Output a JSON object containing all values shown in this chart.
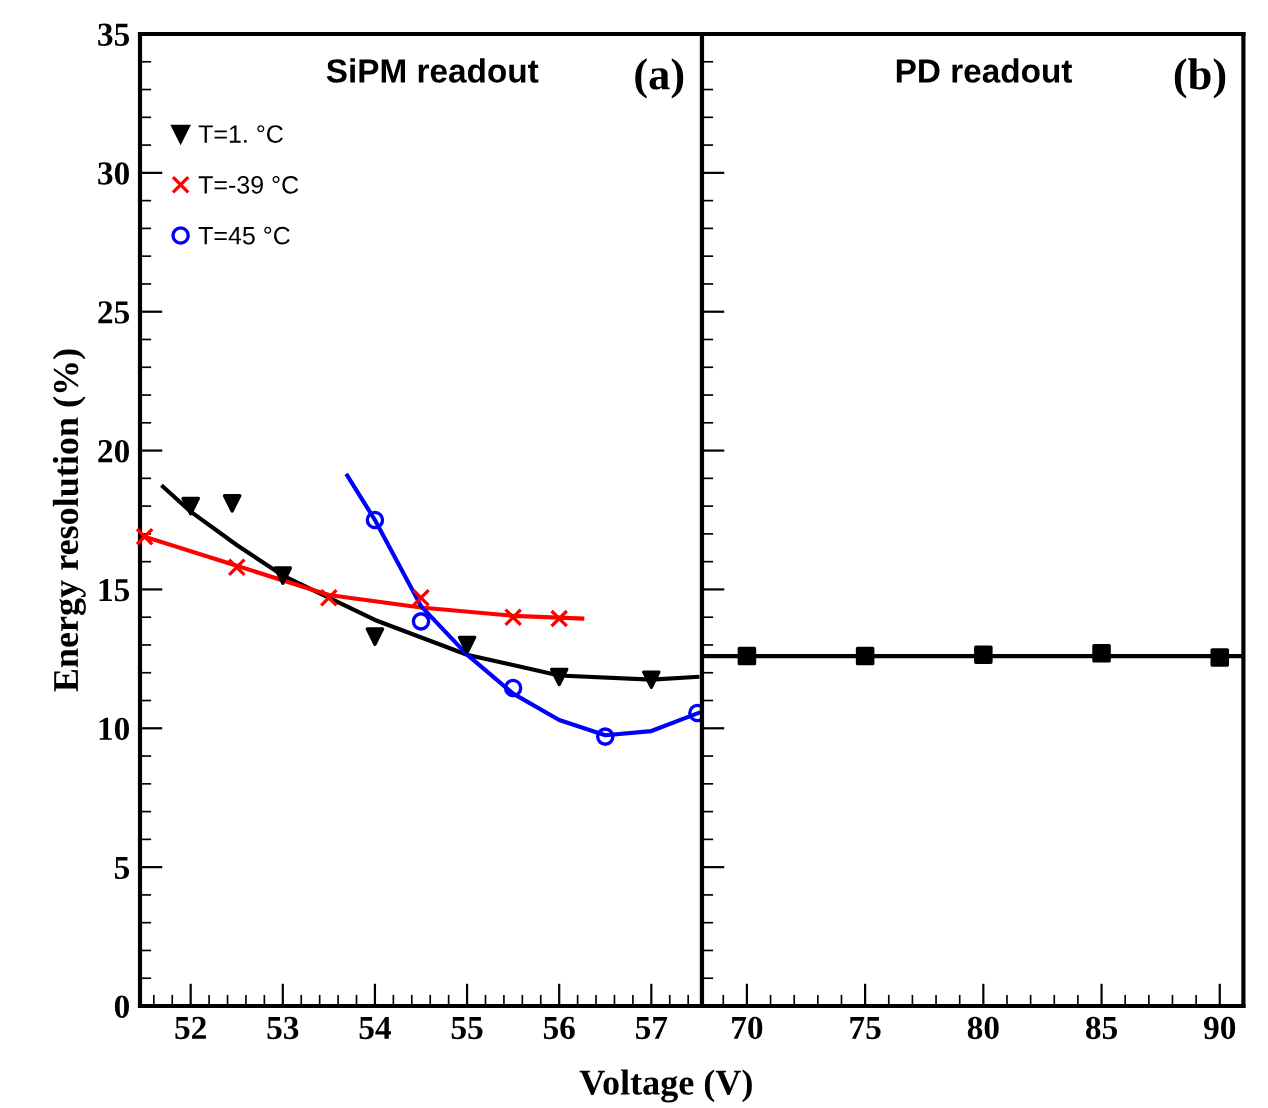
{
  "chart_data": [
    {
      "type": "scatter",
      "title": "SiPM readout",
      "annotations": [
        "(a)"
      ],
      "xlabel": "Voltage (V)",
      "ylabel": "Energy resolution (%)",
      "xlim": [
        51.45,
        57.55
      ],
      "xticks": [
        52,
        53,
        54,
        55,
        56,
        57
      ],
      "ylim": [
        0,
        35
      ],
      "yticks": [
        0,
        5,
        10,
        15,
        20,
        25,
        30,
        35
      ],
      "legend": "top left",
      "grid": false,
      "series": [
        {
          "name": "T=1. °C",
          "marker": "triangle",
          "color": "#000000",
          "x": [
            52.0,
            52.45,
            53.0,
            54.0,
            55.0,
            56.0,
            57.0
          ],
          "values": [
            18.0,
            18.1,
            15.5,
            13.3,
            13.0,
            11.85,
            11.75
          ]
        },
        {
          "name": "T=-39 °C",
          "marker": "cross",
          "color": "#ff0000",
          "x": [
            51.5,
            52.5,
            53.5,
            54.5,
            55.5,
            56.0
          ],
          "values": [
            16.9,
            15.8,
            14.7,
            14.7,
            14.0,
            13.95
          ]
        },
        {
          "name": "T=45 °C",
          "marker": "circle",
          "color": "#0000ff",
          "x": [
            54.0,
            54.5,
            55.5,
            56.5,
            57.5
          ],
          "values": [
            17.5,
            13.85,
            11.45,
            9.7,
            10.55
          ]
        },
        {
          "type": "line",
          "color": "#000000",
          "x": [
            51.7,
            52.0,
            52.5,
            53.0,
            54.0,
            55.0,
            56.0,
            57.0,
            57.5
          ],
          "values": [
            18.7,
            17.8,
            16.6,
            15.5,
            13.9,
            12.65,
            11.9,
            11.75,
            11.85
          ]
        },
        {
          "type": "line",
          "color": "#ff0000",
          "x": [
            51.5,
            52.5,
            53.5,
            54.5,
            55.5,
            56.25
          ],
          "values": [
            16.9,
            15.85,
            14.8,
            14.35,
            14.05,
            13.95
          ]
        },
        {
          "type": "line",
          "color": "#0000ff",
          "x": [
            53.7,
            54.0,
            54.5,
            55.0,
            55.5,
            56.0,
            56.5,
            57.0,
            57.55
          ],
          "values": [
            19.1,
            17.5,
            14.4,
            12.65,
            11.25,
            10.3,
            9.75,
            9.9,
            10.6
          ]
        }
      ]
    },
    {
      "type": "scatter",
      "title": "PD readout",
      "annotations": [
        "(b)"
      ],
      "xlim": [
        68.1,
        91
      ],
      "xticks": [
        70,
        75,
        80,
        85,
        90
      ],
      "ylim": [
        0,
        35
      ],
      "yticks": [
        0,
        5,
        10,
        15,
        20,
        25,
        30,
        35
      ],
      "tick_labels": "x",
      "grid": false,
      "series": [
        {
          "marker": "square",
          "color": "#000000",
          "x": [
            70,
            75,
            80,
            85,
            90
          ],
          "values": [
            12.6,
            12.6,
            12.65,
            12.7,
            12.55
          ]
        },
        {
          "type": "line",
          "color": "#000000",
          "x": [
            68.1,
            91
          ],
          "values": [
            12.6,
            12.6
          ]
        }
      ]
    }
  ]
}
